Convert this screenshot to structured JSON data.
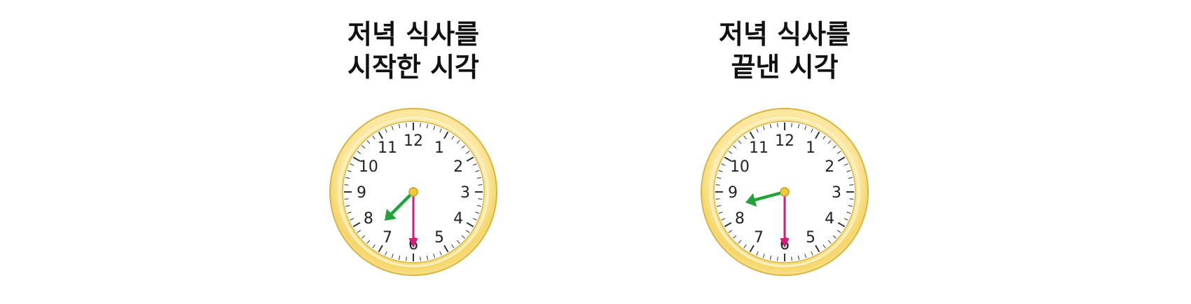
{
  "clocks": [
    {
      "title_line1": "저녁 식사를",
      "title_line2": "시작한 시각",
      "hour": 7,
      "minute": 30,
      "numerals": [
        "12",
        "1",
        "2",
        "3",
        "4",
        "5",
        "6",
        "7",
        "8",
        "9",
        "10",
        "11"
      ]
    },
    {
      "title_line1": "저녁 식사를",
      "title_line2": "끝낸 시각",
      "hour": 8,
      "minute": 30,
      "numerals": [
        "12",
        "1",
        "2",
        "3",
        "4",
        "5",
        "6",
        "7",
        "8",
        "9",
        "10",
        "11"
      ]
    }
  ],
  "colors": {
    "rim_outer": "#f5d66a",
    "rim_edge": "#d9b545",
    "face": "#ffffff",
    "ticks": "#333333",
    "hour_hand": "#22a33a",
    "minute_hand": "#d81b7a",
    "center": "#f3c93c"
  }
}
